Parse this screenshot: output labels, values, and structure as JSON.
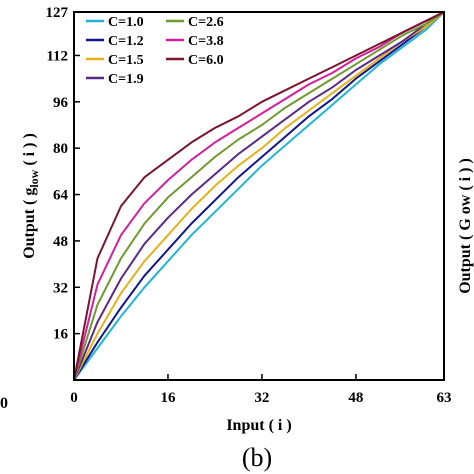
{
  "panel_label": "(b)",
  "left_edge_fragment": "0",
  "right_edge_fragment": "Output ( G ow ( i ) )",
  "chart_data": {
    "type": "line",
    "xlabel": "Input ( i )",
    "ylabel": "Output ( g",
    "ylabel_subscript": "low",
    "ylabel_suffix": " ( i ) )",
    "xlim": [
      0,
      63
    ],
    "ylim": [
      0,
      127
    ],
    "xticks": [
      0,
      16,
      32,
      48,
      63
    ],
    "yticks": [
      16,
      32,
      48,
      64,
      80,
      96,
      112,
      127
    ],
    "grid": false,
    "legend_position": "top-left",
    "series": [
      {
        "name": "C=1.0",
        "color": "#1fb5d6",
        "x": [
          0,
          4,
          8,
          12,
          16,
          20,
          24,
          28,
          32,
          36,
          40,
          44,
          48,
          52,
          56,
          60,
          63
        ],
        "y": [
          0,
          11,
          22,
          32,
          41,
          50,
          58,
          66,
          74,
          81,
          88,
          95,
          102,
          109,
          115,
          121,
          127
        ]
      },
      {
        "name": "C=1.2",
        "color": "#10178f",
        "x": [
          0,
          4,
          8,
          12,
          16,
          20,
          24,
          28,
          32,
          36,
          40,
          44,
          48,
          52,
          56,
          60,
          63
        ],
        "y": [
          0,
          13,
          25,
          36,
          45,
          54,
          62,
          70,
          77,
          84,
          91,
          97,
          104,
          110,
          116,
          122,
          127
        ]
      },
      {
        "name": "C=1.5",
        "color": "#e8b11a",
        "x": [
          0,
          4,
          8,
          12,
          16,
          20,
          24,
          28,
          32,
          36,
          40,
          44,
          48,
          52,
          56,
          60,
          63
        ],
        "y": [
          0,
          16,
          30,
          41,
          50,
          59,
          67,
          74,
          80,
          87,
          93,
          99,
          105,
          111,
          117,
          122,
          127
        ]
      },
      {
        "name": "C=1.9",
        "color": "#5b2a86",
        "x": [
          0,
          4,
          8,
          12,
          16,
          20,
          24,
          28,
          32,
          36,
          40,
          44,
          48,
          52,
          56,
          60,
          63
        ],
        "y": [
          0,
          20,
          35,
          47,
          56,
          64,
          71,
          78,
          84,
          90,
          96,
          101,
          107,
          112,
          117,
          123,
          127
        ]
      },
      {
        "name": "C=2.6",
        "color": "#6e9a2e",
        "x": [
          0,
          4,
          8,
          12,
          16,
          20,
          24,
          28,
          32,
          36,
          40,
          44,
          48,
          52,
          56,
          60,
          63
        ],
        "y": [
          0,
          26,
          42,
          54,
          63,
          70,
          77,
          83,
          88,
          94,
          99,
          104,
          109,
          114,
          119,
          123,
          127
        ]
      },
      {
        "name": "C=3.8",
        "color": "#d3209c",
        "x": [
          0,
          4,
          8,
          12,
          16,
          20,
          24,
          28,
          32,
          36,
          40,
          44,
          48,
          52,
          56,
          60,
          63
        ],
        "y": [
          0,
          33,
          50,
          61,
          69,
          76,
          82,
          87,
          92,
          97,
          102,
          106,
          111,
          115,
          120,
          124,
          127
        ]
      },
      {
        "name": "C=6.0",
        "color": "#7a1530",
        "x": [
          0,
          4,
          8,
          12,
          16,
          20,
          24,
          28,
          32,
          36,
          40,
          44,
          48,
          52,
          56,
          60,
          63
        ],
        "y": [
          0,
          42,
          60,
          70,
          76,
          82,
          87,
          91,
          96,
          100,
          104,
          108,
          112,
          116,
          120,
          124,
          127
        ]
      }
    ]
  }
}
